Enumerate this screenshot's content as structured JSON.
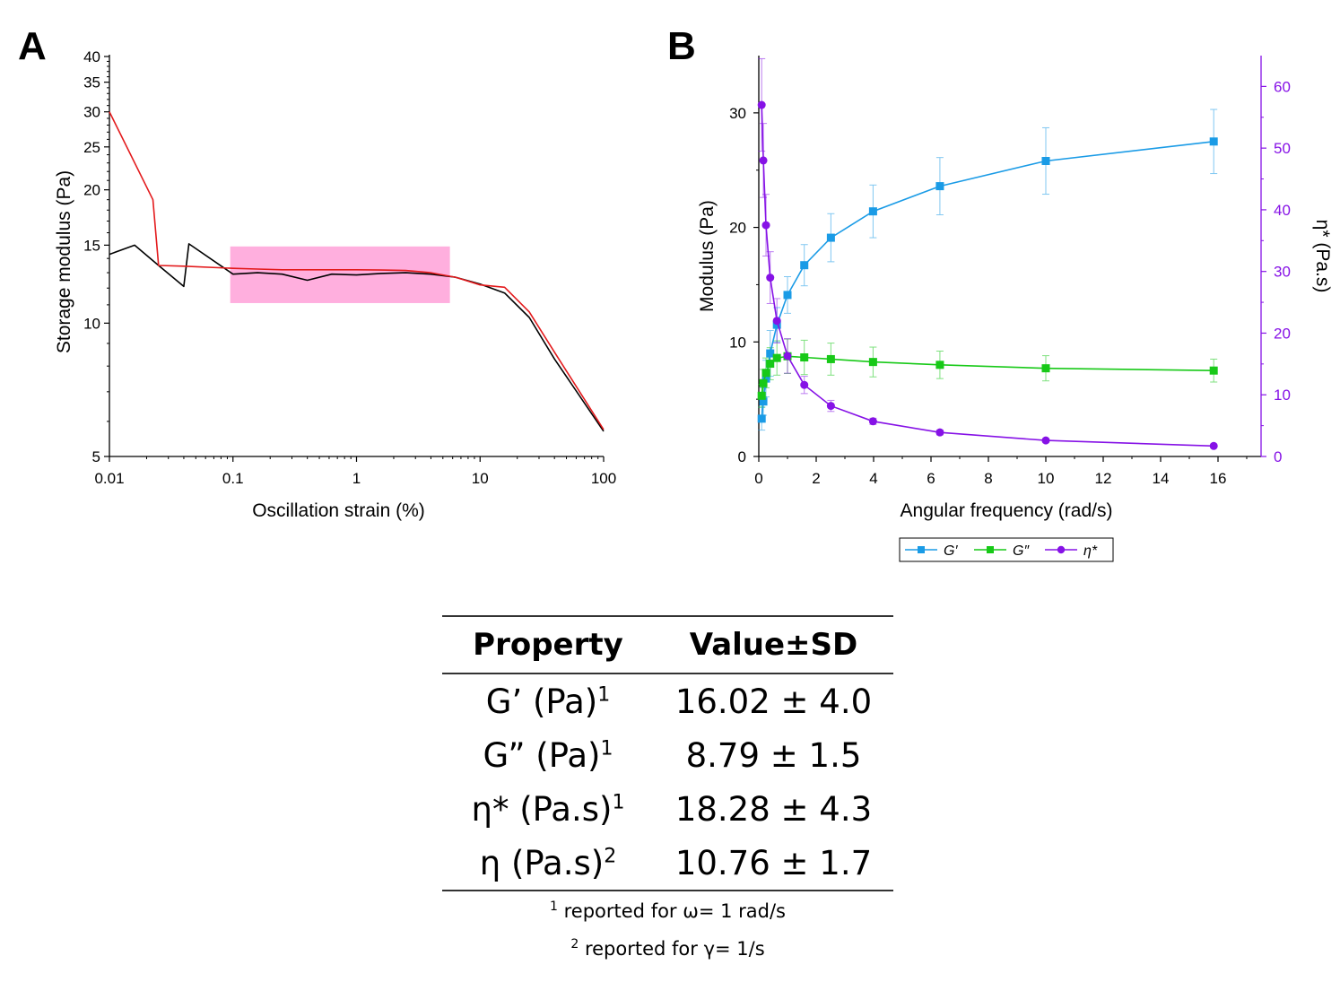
{
  "panels": {
    "a": "A",
    "b": "B"
  },
  "chart_data": [
    {
      "type": "line",
      "panel": "A",
      "xlabel": "Oscillation strain (%)",
      "ylabel": "Storage modulus (Pa)",
      "xscale": "log",
      "yscale": "log",
      "xlim": [
        0.01,
        100
      ],
      "ylim": [
        5,
        40
      ],
      "xticks": [
        0.01,
        0.1,
        1,
        10,
        100
      ],
      "xtick_labels": [
        "0.01",
        "0.1",
        "1",
        "10",
        "100"
      ],
      "yticks": [
        5,
        10,
        15,
        20,
        25,
        30,
        35,
        40
      ],
      "ytick_labels": [
        "5",
        "10",
        "15",
        "20",
        "25",
        "30",
        "35",
        "40"
      ],
      "highlight_region": {
        "x": [
          0.095,
          5.7
        ],
        "y": [
          11.1,
          14.9
        ],
        "color": "#ffafde"
      },
      "series": [
        {
          "color": "#000000",
          "x": [
            0.01,
            0.016,
            0.025,
            0.04,
            0.044,
            0.1,
            0.158,
            0.25,
            0.4,
            0.63,
            1,
            1.58,
            2.5,
            4,
            6.3,
            10,
            15.8,
            25,
            40,
            100
          ],
          "y": [
            14.3,
            15.0,
            13.5,
            12.1,
            15.1,
            12.9,
            13.0,
            12.9,
            12.5,
            12.9,
            12.85,
            12.95,
            13.0,
            12.9,
            12.7,
            12.25,
            11.7,
            10.3,
            8.3,
            5.7
          ]
        },
        {
          "color": "#e31a1c",
          "x": [
            0.01,
            0.0225,
            0.025,
            0.04,
            0.1,
            0.158,
            0.25,
            0.4,
            0.63,
            1,
            1.58,
            2.5,
            4,
            6.3,
            10,
            15.8,
            25,
            40,
            100
          ],
          "y": [
            30.0,
            19.0,
            13.5,
            13.45,
            13.3,
            13.25,
            13.2,
            13.2,
            13.2,
            13.2,
            13.18,
            13.15,
            13.0,
            12.7,
            12.2,
            12.05,
            10.6,
            8.6,
            5.75
          ]
        }
      ]
    },
    {
      "type": "line",
      "panel": "B",
      "xlabel": "Angular frequency (rad/s)",
      "ylabel": "Modulus (Pa)",
      "y2label": "η* (Pa.s)",
      "xlim": [
        0,
        17.5
      ],
      "ylim": [
        0,
        35
      ],
      "y2lim": [
        0,
        65
      ],
      "xticks": [
        0,
        2,
        4,
        6,
        8,
        10,
        12,
        14,
        16
      ],
      "yticks": [
        0,
        10,
        20,
        30
      ],
      "y2ticks": [
        0,
        10,
        20,
        30,
        40,
        50,
        60
      ],
      "legend_position": "bottom",
      "series": [
        {
          "name": "G′",
          "color": "#1a9be6",
          "marker": "square",
          "axis": "left",
          "x": [
            0.1,
            0.158,
            0.25,
            0.398,
            0.631,
            1,
            1.585,
            2.512,
            3.981,
            6.31,
            10,
            15.85
          ],
          "y": [
            3.3,
            4.8,
            6.8,
            9.0,
            11.5,
            14.1,
            16.7,
            19.1,
            21.4,
            23.6,
            25.8,
            27.5
          ],
          "err": [
            1.0,
            1.2,
            1.6,
            2.0,
            1.5,
            1.6,
            1.8,
            2.1,
            2.3,
            2.5,
            2.9,
            2.8
          ]
        },
        {
          "name": "G″",
          "color": "#17c917",
          "marker": "square",
          "axis": "left",
          "x": [
            0.1,
            0.158,
            0.25,
            0.398,
            0.631,
            1,
            1.585,
            2.512,
            3.981,
            6.31,
            10,
            15.85
          ],
          "y": [
            5.3,
            6.4,
            7.3,
            8.1,
            8.6,
            8.75,
            8.65,
            8.5,
            8.25,
            8.0,
            7.7,
            7.5
          ],
          "err": [
            1.0,
            1.2,
            1.3,
            1.4,
            1.5,
            1.5,
            1.5,
            1.4,
            1.3,
            1.2,
            1.1,
            1.0
          ]
        },
        {
          "name": "η*",
          "color": "#8612e6",
          "marker": "circle",
          "axis": "right",
          "x": [
            0.1,
            0.158,
            0.251,
            0.398,
            0.631,
            1,
            1.585,
            2.512,
            3.981,
            6.31,
            10,
            15.85
          ],
          "y": [
            57.0,
            48.0,
            37.5,
            29.0,
            22.0,
            16.3,
            11.6,
            8.2,
            5.7,
            3.9,
            2.6,
            1.7
          ],
          "err": [
            7.5,
            6.0,
            5.0,
            4.2,
            3.6,
            2.8,
            1.4,
            0.9,
            0.5,
            0.4,
            0.3,
            0.2
          ]
        }
      ]
    }
  ],
  "table": {
    "headers": [
      "Property",
      "Value±SD"
    ],
    "rows": [
      {
        "property": "G’ (Pa)",
        "sup": "1",
        "value": "16.02 ± 4.0"
      },
      {
        "property": "G” (Pa)",
        "sup": "1",
        "value": "8.79 ± 1.5"
      },
      {
        "property": "η* (Pa.s)",
        "sup": "1",
        "value": "18.28 ± 4.3"
      },
      {
        "property": "η (Pa.s)",
        "sup": "2",
        "value": "10.76 ± 1.7"
      }
    ],
    "footnotes": [
      {
        "mark": "1",
        "text": "reported for ω= 1 rad/s"
      },
      {
        "mark": "2",
        "text": "reported for γ= 1/s"
      }
    ]
  }
}
